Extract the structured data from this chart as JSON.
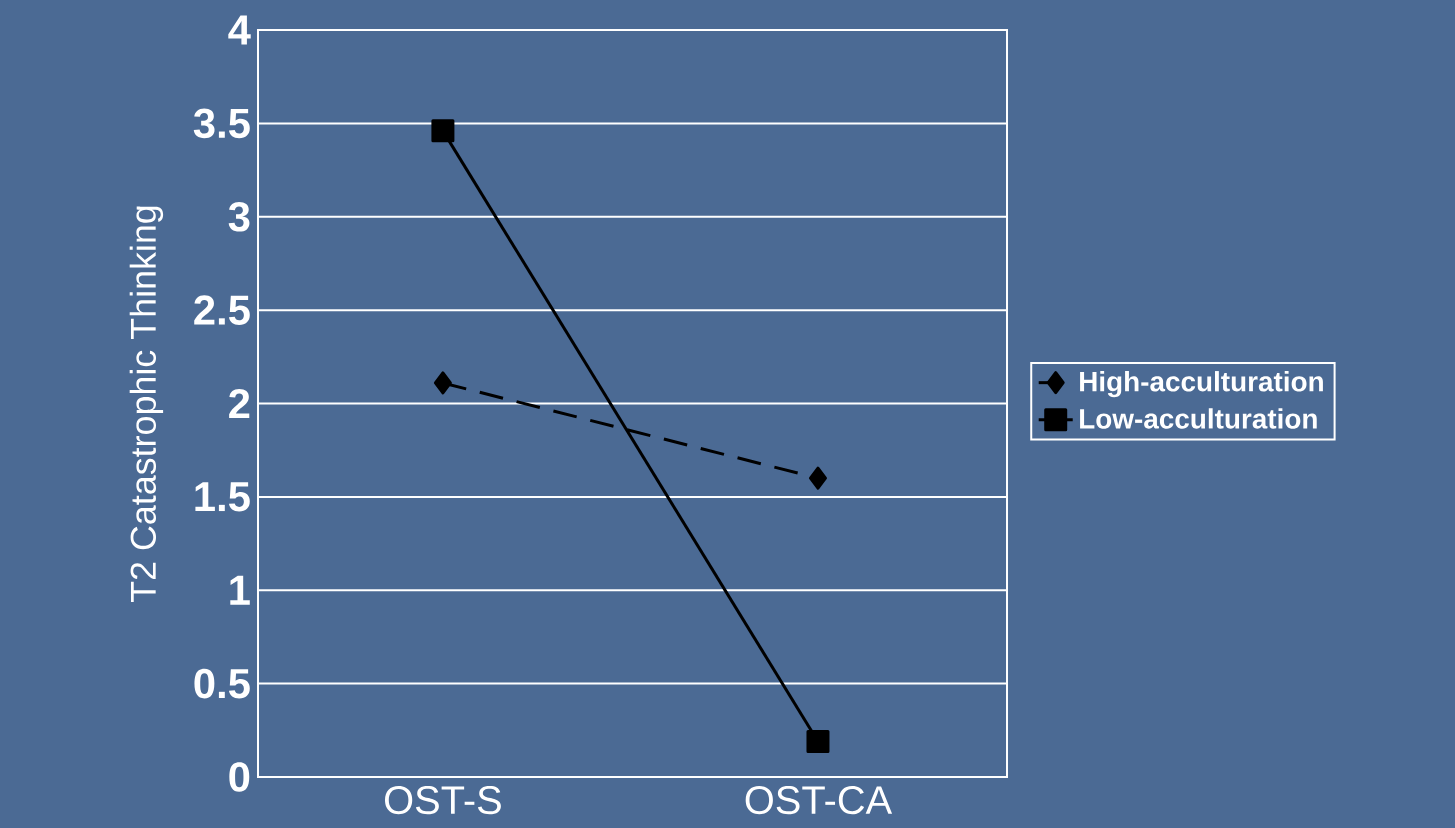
{
  "chart_data": {
    "type": "line",
    "ylabel": "T2 Catastrophic Thinking",
    "categories": [
      "OST-S",
      "OST-CA"
    ],
    "series": [
      {
        "name": "High-acculturation",
        "color": "#000000",
        "values": [
          2.11,
          1.6
        ],
        "marker": "diamond",
        "line_style": "dashed"
      },
      {
        "name": "Low-acculturation",
        "color": "#000000",
        "values": [
          3.46,
          0.19
        ],
        "marker": "square",
        "line_style": "solid"
      }
    ],
    "ylim": [
      0,
      4
    ],
    "yticks": [
      0,
      0.5,
      1,
      1.5,
      2,
      2.5,
      3,
      3.5,
      4
    ],
    "grid": "y",
    "legend": "right"
  }
}
